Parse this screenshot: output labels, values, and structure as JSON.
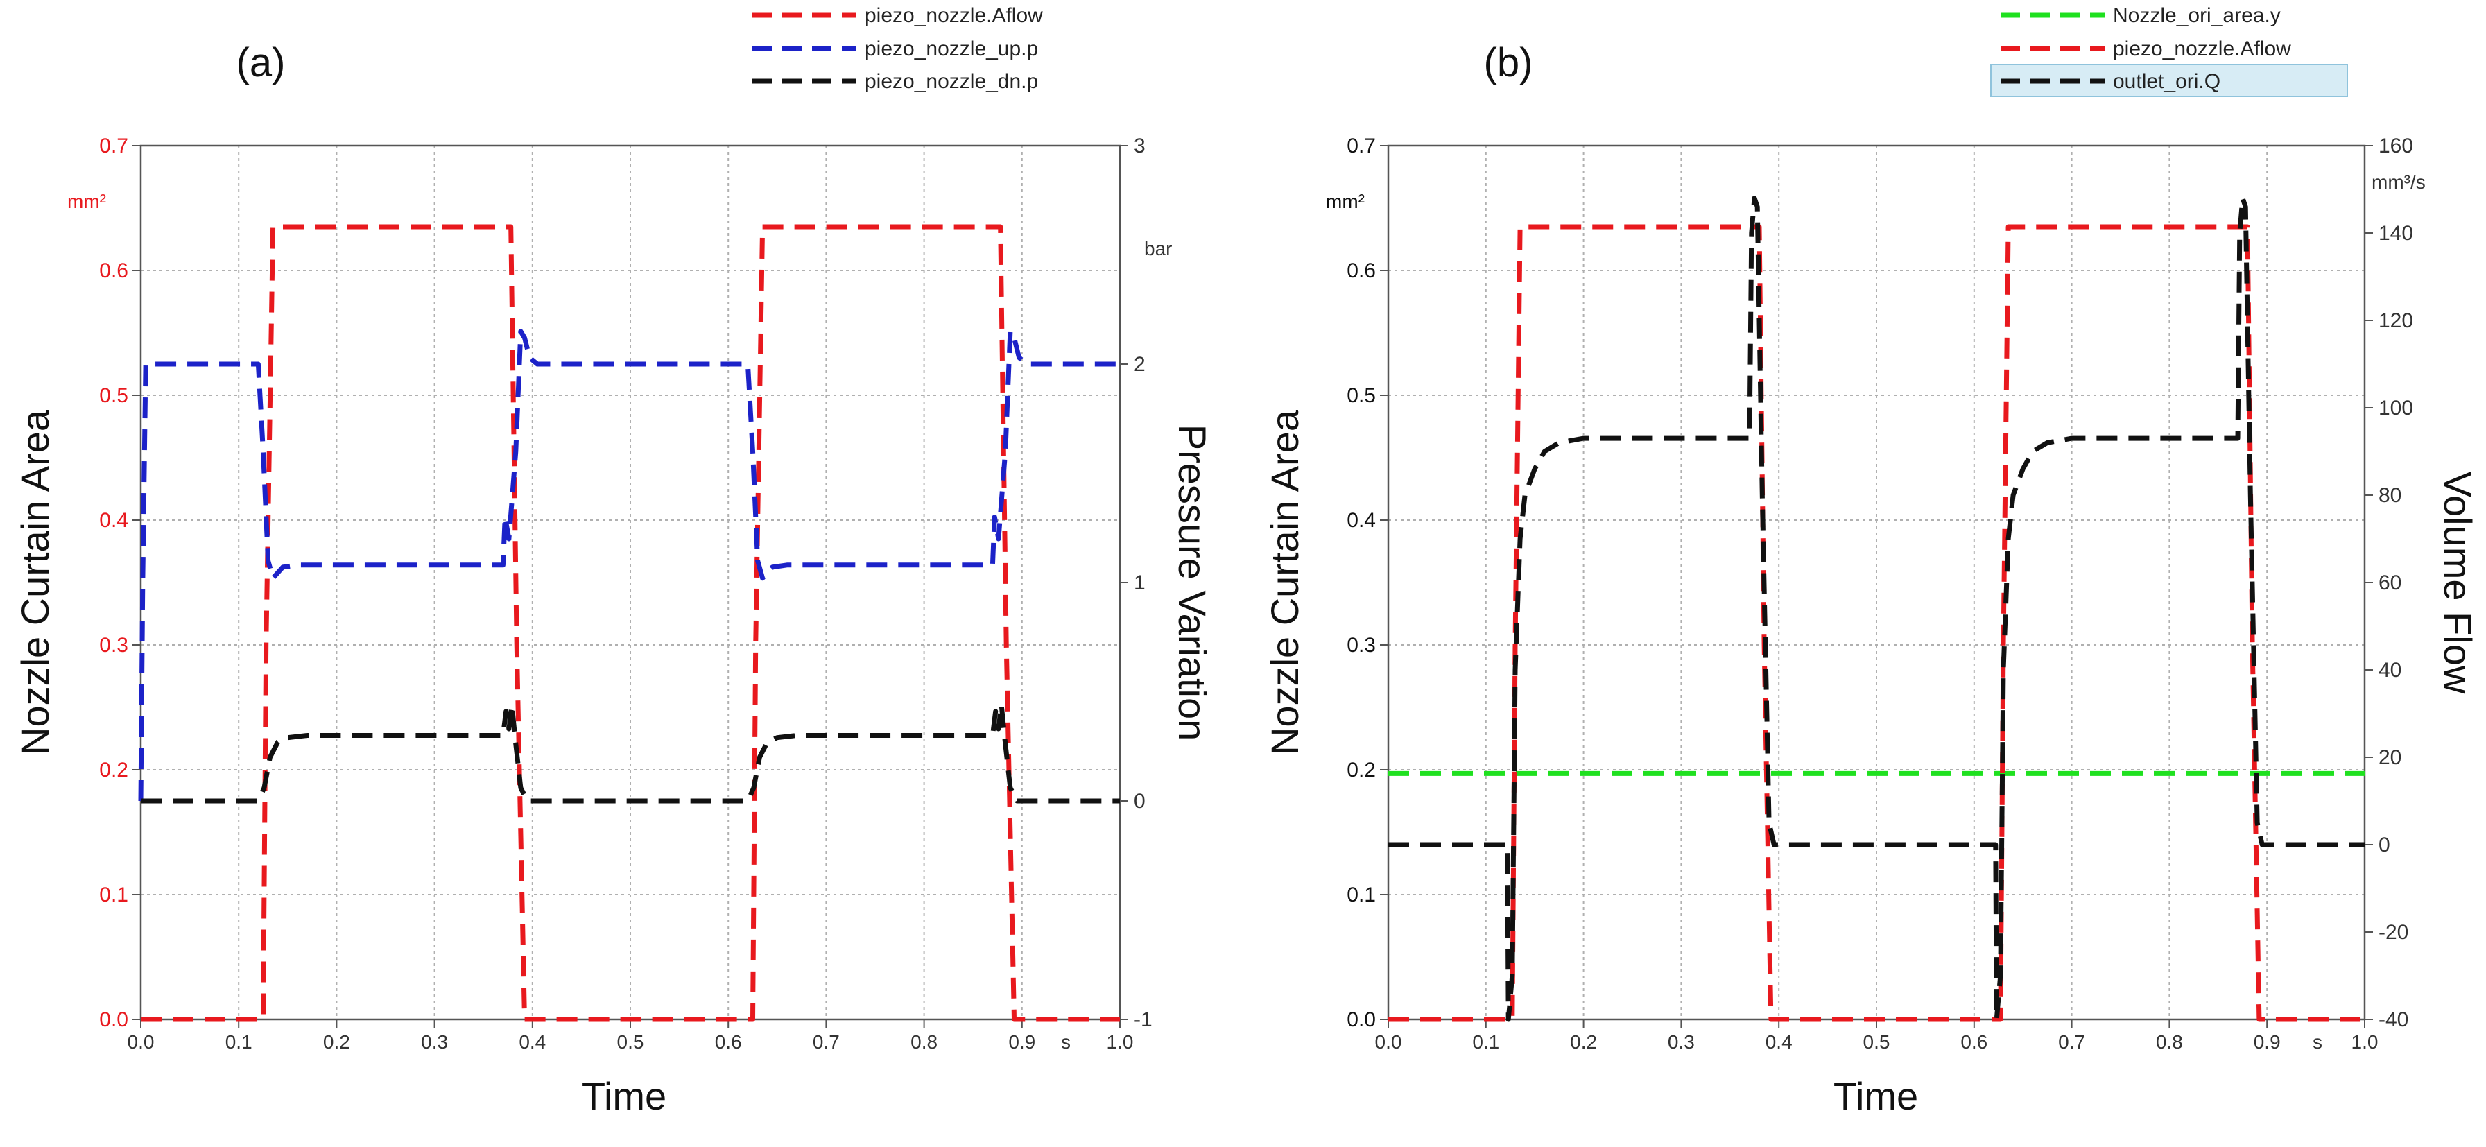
{
  "colors": {
    "red": "#e8191e",
    "blue": "#1c22c8",
    "black": "#111111",
    "green": "#1fe01f",
    "legend_highlight": "#d7ecf5"
  },
  "chart_data": [
    {
      "type": "line",
      "panel": "(a)",
      "xlabel": "Time",
      "x_unit": "s",
      "xlim": [
        0.0,
        1.0
      ],
      "x_ticks": [
        "0.0",
        "0.1",
        "0.2",
        "0.3",
        "0.4",
        "0.5",
        "0.6",
        "0.7",
        "0.8",
        "0.9",
        "1.0"
      ],
      "ylabel_left": "Nozzle Curtain Area",
      "y_unit_left": "mm²",
      "ylim_left": [
        0.0,
        0.7
      ],
      "y_ticks_left": [
        "0.0",
        "0.1",
        "0.2",
        "0.3",
        "0.4",
        "0.5",
        "0.6",
        "0.7"
      ],
      "ylabel_right": "Pressure Variation",
      "y_unit_right": "bar",
      "ylim_right": [
        -1,
        3
      ],
      "y_ticks_right": [
        "-1",
        "0",
        "1",
        "2",
        "3"
      ],
      "legend_position": "top-right, above plot",
      "series": [
        {
          "name": "piezo_nozzle.Aflow",
          "color": "red",
          "axis": "left",
          "x": [
            0,
            0.125,
            0.128,
            0.135,
            0.378,
            0.384,
            0.392,
            0.625,
            0.628,
            0.635,
            0.878,
            0.884,
            0.892,
            1.0
          ],
          "y": [
            0.0,
            0.0,
            0.3,
            0.635,
            0.635,
            0.3,
            0.0,
            0.0,
            0.3,
            0.635,
            0.635,
            0.3,
            0.0,
            0.0
          ]
        },
        {
          "name": "piezo_nozzle_up.p",
          "color": "blue",
          "axis": "right",
          "x": [
            0,
            0.002,
            0.005,
            0.12,
            0.125,
            0.13,
            0.135,
            0.145,
            0.16,
            0.37,
            0.372,
            0.376,
            0.383,
            0.388,
            0.392,
            0.397,
            0.405,
            0.62,
            0.625,
            0.63,
            0.635,
            0.645,
            0.66,
            0.87,
            0.872,
            0.876,
            0.883,
            0.888,
            0.892,
            0.897,
            0.905,
            1.0
          ],
          "y": [
            0.0,
            1.0,
            2.0,
            2.0,
            1.6,
            1.1,
            1.02,
            1.07,
            1.08,
            1.08,
            1.3,
            1.2,
            1.6,
            2.15,
            2.12,
            2.03,
            2.0,
            2.0,
            1.6,
            1.1,
            1.02,
            1.07,
            1.08,
            1.08,
            1.3,
            1.2,
            1.6,
            2.15,
            2.12,
            2.03,
            2.0,
            2.0
          ]
        },
        {
          "name": "piezo_nozzle_dn.p",
          "color": "black",
          "axis": "right",
          "x": [
            0,
            0.12,
            0.126,
            0.132,
            0.14,
            0.15,
            0.17,
            0.37,
            0.373,
            0.376,
            0.379,
            0.383,
            0.388,
            0.395,
            0.62,
            0.626,
            0.632,
            0.64,
            0.65,
            0.67,
            0.87,
            0.873,
            0.876,
            0.879,
            0.883,
            0.888,
            0.895,
            1.0
          ],
          "y": [
            0.0,
            0.0,
            0.06,
            0.2,
            0.27,
            0.29,
            0.3,
            0.3,
            0.41,
            0.33,
            0.44,
            0.26,
            0.06,
            0.0,
            0.0,
            0.06,
            0.2,
            0.27,
            0.29,
            0.3,
            0.3,
            0.41,
            0.33,
            0.44,
            0.26,
            0.06,
            0.0,
            0.0
          ]
        }
      ]
    },
    {
      "type": "line",
      "panel": "(b)",
      "xlabel": "Time",
      "x_unit": "s",
      "xlim": [
        0.0,
        1.0
      ],
      "x_ticks": [
        "0.0",
        "0.1",
        "0.2",
        "0.3",
        "0.4",
        "0.5",
        "0.6",
        "0.7",
        "0.8",
        "0.9",
        "1.0"
      ],
      "ylabel_left": "Nozzle Curtain Area",
      "y_unit_left": "mm²",
      "ylim_left": [
        0.0,
        0.7
      ],
      "y_ticks_left": [
        "0.0",
        "0.1",
        "0.2",
        "0.3",
        "0.4",
        "0.5",
        "0.6",
        "0.7"
      ],
      "ylabel_right": "Volume Flow",
      "y_unit_right": "mm³/s",
      "ylim_right": [
        -40,
        160
      ],
      "y_ticks_right": [
        "-40",
        "-20",
        "0",
        "20",
        "40",
        "60",
        "80",
        "100",
        "120",
        "140",
        "160"
      ],
      "legend_position": "top-right, above plot",
      "series": [
        {
          "name": "Nozzle_ori_area.y",
          "color": "green",
          "axis": "left",
          "x": [
            0,
            1.0
          ],
          "y": [
            0.197,
            0.197
          ]
        },
        {
          "name": "piezo_nozzle.Aflow",
          "color": "red",
          "axis": "left",
          "x": [
            0,
            0.127,
            0.13,
            0.135,
            0.38,
            0.385,
            0.392,
            0.627,
            0.63,
            0.635,
            0.88,
            0.885,
            0.892,
            1.0
          ],
          "y": [
            0.0,
            0.0,
            0.3,
            0.635,
            0.635,
            0.3,
            0.0,
            0.0,
            0.3,
            0.635,
            0.635,
            0.3,
            0.0,
            0.0
          ]
        },
        {
          "name": "outlet_ori.Q",
          "color": "black",
          "axis": "right",
          "x": [
            0,
            0.122,
            0.123,
            0.127,
            0.13,
            0.135,
            0.14,
            0.15,
            0.16,
            0.175,
            0.2,
            0.37,
            0.372,
            0.375,
            0.378,
            0.383,
            0.39,
            0.395,
            0.622,
            0.623,
            0.627,
            0.63,
            0.635,
            0.64,
            0.65,
            0.66,
            0.675,
            0.7,
            0.87,
            0.872,
            0.875,
            0.878,
            0.883,
            0.89,
            0.895,
            1.0
          ],
          "y": [
            0,
            0,
            -40,
            -30,
            40,
            70,
            80,
            86,
            90,
            92,
            93,
            93,
            140,
            148,
            146,
            80,
            5,
            0,
            0,
            -40,
            -30,
            40,
            70,
            80,
            86,
            90,
            92,
            93,
            93,
            140,
            148,
            146,
            80,
            5,
            0,
            0
          ]
        }
      ]
    }
  ]
}
